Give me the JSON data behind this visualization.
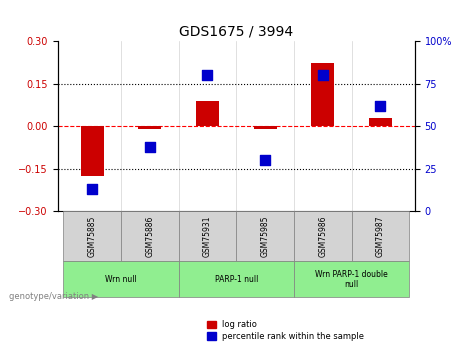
{
  "title": "GDS1675 / 3994",
  "samples": [
    "GSM75885",
    "GSM75886",
    "GSM75931",
    "GSM75985",
    "GSM75986",
    "GSM75987"
  ],
  "log_ratio": [
    -0.175,
    -0.01,
    0.09,
    -0.01,
    0.225,
    0.03
  ],
  "percentile_rank": [
    13,
    38,
    80,
    30,
    80,
    62
  ],
  "groups": [
    {
      "label": "Wrn null",
      "start": 0,
      "end": 2,
      "color": "#90EE90"
    },
    {
      "label": "PARP-1 null",
      "start": 2,
      "end": 4,
      "color": "#90EE90"
    },
    {
      "label": "Wrn PARP-1 double null",
      "start": 4,
      "end": 6,
      "color": "#90EE90"
    }
  ],
  "ylim_left": [
    -0.3,
    0.3
  ],
  "ylim_right": [
    0,
    100
  ],
  "yticks_left": [
    -0.3,
    -0.15,
    0,
    0.15,
    0.3
  ],
  "yticks_right": [
    0,
    25,
    50,
    75,
    100
  ],
  "hlines": [
    0.15,
    0,
    -0.15
  ],
  "bar_color": "#CC0000",
  "dot_color": "#0000CC",
  "bar_width": 0.4,
  "dot_size": 60,
  "legend_bar_label": "log ratio",
  "legend_dot_label": "percentile rank within the sample",
  "genotype_label": "genotype/variation",
  "background_color": "#ffffff",
  "plot_bg_color": "#ffffff",
  "grid_color": "#000000",
  "tick_label_color_left": "#CC0000",
  "tick_label_color_right": "#0000CC"
}
